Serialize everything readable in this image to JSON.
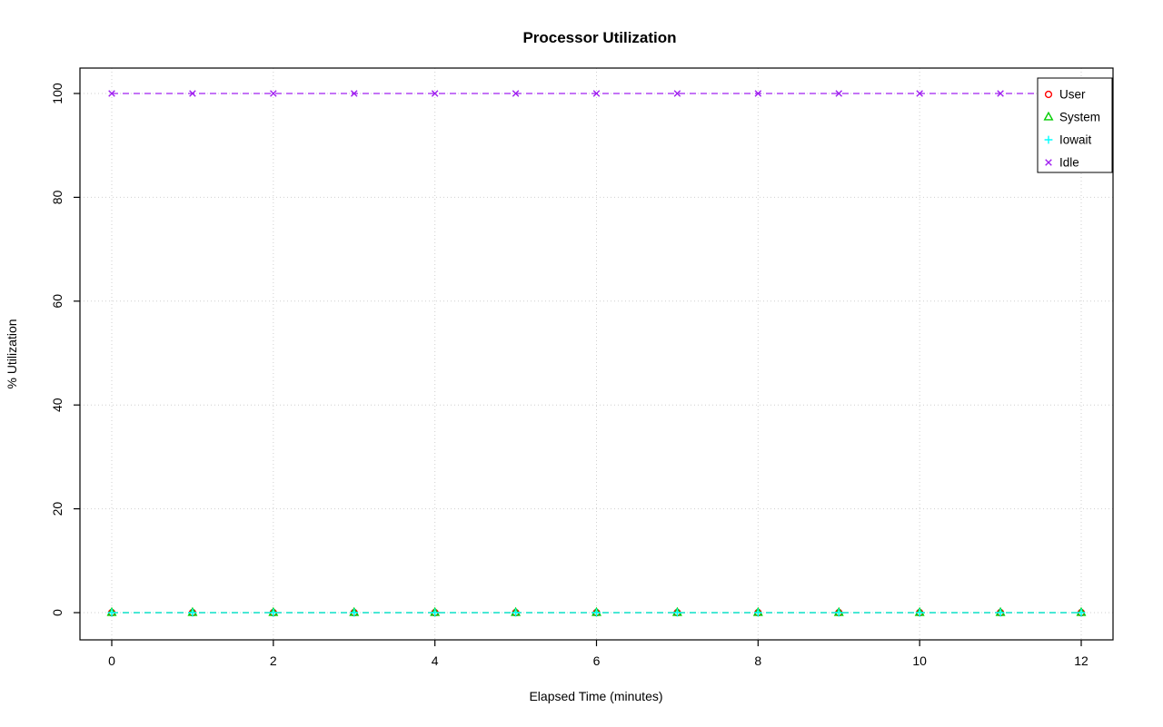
{
  "chart_data": {
    "type": "line",
    "title": "Processor Utilization",
    "xlabel": "Elapsed Time (minutes)",
    "ylabel": "% Utilization",
    "x": [
      0,
      1,
      2,
      3,
      4,
      5,
      6,
      7,
      8,
      9,
      10,
      11,
      12
    ],
    "xlim": [
      0,
      12
    ],
    "ylim": [
      0,
      100
    ],
    "x_ticks": [
      0,
      2,
      4,
      6,
      8,
      10,
      12
    ],
    "y_ticks": [
      0,
      20,
      40,
      60,
      80,
      100
    ],
    "grid": true,
    "grid_color": "#CFCFCF",
    "border_color": "#000000",
    "legend_position": "top-right",
    "series": [
      {
        "name": "User",
        "color": "#FF0000",
        "marker": "circle",
        "line_style": "dashed",
        "values": [
          0,
          0,
          0,
          0,
          0,
          0,
          0,
          0,
          0,
          0,
          0,
          0,
          0
        ]
      },
      {
        "name": "System",
        "color": "#00CD00",
        "marker": "triangle",
        "line_style": "dashed",
        "values": [
          0,
          0,
          0,
          0,
          0,
          0,
          0,
          0,
          0,
          0,
          0,
          0,
          0
        ]
      },
      {
        "name": "Iowait",
        "color": "#00FFFF",
        "marker": "plus",
        "line_style": "dashed",
        "values": [
          0,
          0,
          0,
          0,
          0,
          0,
          0,
          0,
          0,
          0,
          0,
          0,
          0
        ]
      },
      {
        "name": "Idle",
        "color": "#A020F0",
        "marker": "x",
        "line_style": "dashed",
        "values": [
          100,
          100,
          100,
          100,
          100,
          100,
          100,
          100,
          100,
          100,
          100,
          100,
          100
        ]
      }
    ]
  }
}
